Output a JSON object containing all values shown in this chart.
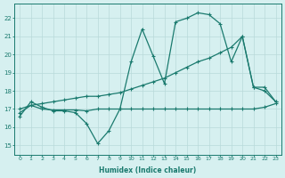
{
  "line1_x": [
    0,
    1,
    2,
    3,
    4,
    5,
    6,
    7,
    8,
    9,
    10,
    11,
    12,
    13,
    14,
    15,
    16,
    17,
    18,
    19,
    20,
    21,
    22,
    23
  ],
  "line1_y": [
    16.6,
    17.4,
    17.1,
    16.9,
    16.9,
    16.8,
    16.2,
    15.1,
    15.8,
    17.0,
    19.6,
    21.4,
    19.9,
    18.4,
    21.8,
    22.0,
    22.3,
    22.2,
    21.7,
    19.6,
    21.0,
    18.2,
    18.2,
    17.4
  ],
  "line2_x": [
    0,
    1,
    2,
    3,
    4,
    5,
    6,
    7,
    8,
    9,
    10,
    11,
    12,
    13,
    14,
    15,
    16,
    17,
    18,
    19,
    20,
    21,
    22,
    23
  ],
  "line2_y": [
    17.0,
    17.2,
    17.3,
    17.4,
    17.5,
    17.6,
    17.7,
    17.7,
    17.8,
    17.9,
    18.1,
    18.3,
    18.5,
    18.7,
    19.0,
    19.3,
    19.6,
    19.8,
    20.1,
    20.4,
    21.0,
    18.2,
    18.0,
    17.4
  ],
  "line3_x": [
    0,
    1,
    2,
    3,
    4,
    5,
    6,
    7,
    8,
    9,
    10,
    11,
    12,
    13,
    14,
    15,
    16,
    17,
    18,
    19,
    20,
    21,
    22,
    23
  ],
  "line3_y": [
    16.8,
    17.2,
    17.0,
    16.95,
    16.95,
    16.95,
    16.9,
    17.0,
    17.0,
    17.0,
    17.0,
    17.0,
    17.0,
    17.0,
    17.0,
    17.0,
    17.0,
    17.0,
    17.0,
    17.0,
    17.0,
    17.0,
    17.1,
    17.3
  ],
  "line_color": "#1a7a6e",
  "bg_color": "#d6f0f0",
  "grid_color": "#b8dada",
  "xlabel": "Humidex (Indice chaleur)",
  "ylim": [
    14.5,
    22.8
  ],
  "xlim": [
    -0.5,
    23.5
  ],
  "yticks": [
    15,
    16,
    17,
    18,
    19,
    20,
    21,
    22
  ],
  "xticks": [
    0,
    1,
    2,
    3,
    4,
    5,
    6,
    7,
    8,
    9,
    10,
    11,
    12,
    13,
    14,
    15,
    16,
    17,
    18,
    19,
    20,
    21,
    22,
    23
  ],
  "marker": "+",
  "markersize": 3.5,
  "linewidth": 0.9
}
